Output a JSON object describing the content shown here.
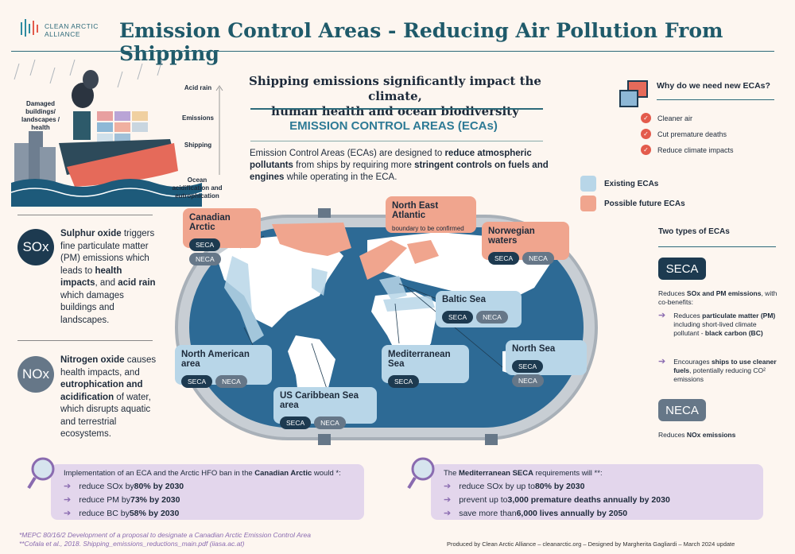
{
  "logo": {
    "line1": "CLEAN ARCTIC",
    "line2": "ALLIANCE"
  },
  "title": "Emission Control Areas - Reducing Air Pollution From Shipping",
  "subtitle_line1": "Shipping emissions significantly impact the climate,",
  "subtitle_line2": "human health and ocean biodiversity",
  "ecas_heading": "EMISSION CONTROL AREAS (ECAs)",
  "intro": {
    "p1": "Emission Control Areas (ECAs) are designed to ",
    "b1": "reduce atmospheric pollutants",
    "p2": " from ships by requiring more ",
    "b2": "stringent controls on fuels and engines",
    "p3": " while operating in the ECA."
  },
  "illustration": {
    "damaged": "Damaged buildings/ landscapes / health",
    "acid_rain": "Acid rain",
    "emissions": "Emissions",
    "shipping": "Shipping",
    "ocean": "Ocean acidification and eutrophication"
  },
  "why": {
    "title": "Why do we need new ECAs?",
    "items": [
      "Cleaner air",
      "Cut premature deaths",
      "Reduce climate impacts"
    ]
  },
  "legend": {
    "existing": "Existing ECAs",
    "future": "Possible future ECAs"
  },
  "types": {
    "title": "Two types of ECAs",
    "seca": "SECA",
    "seca_desc_a": "Reduces ",
    "seca_desc_b": "SOx and PM emissions",
    "seca_desc_c": ", with co-benefits:",
    "seca_b1_a": "Reduces ",
    "seca_b1_b": "particulate matter (PM)",
    "seca_b1_c": " including short-lived climate pollutant - ",
    "seca_b1_d": "black carbon (BC)",
    "seca_b2_a": "Encourages ",
    "seca_b2_b": "ships to use cleaner fuels",
    "seca_b2_c": ", potentially reducing CO² emissions",
    "neca": "NECA",
    "neca_desc_a": "Reduces ",
    "neca_desc_b": "NOx emissions"
  },
  "sox": {
    "icon": "SOx",
    "t1": "Sulphur oxide",
    "t2": " triggers fine particulate matter (PM) emissions which leads to ",
    "t3": "health impacts",
    "t4": ", and ",
    "t5": "acid rain",
    "t6": " which damages buildings and landscapes."
  },
  "nox": {
    "icon": "NOx",
    "t1": "Nitrogen oxide",
    "t2": " causes health impacts, and ",
    "t3": "eutrophication and acidification",
    "t4": " of water, which disrupts aquatic and terrestrial ecosystems."
  },
  "regions": {
    "canadian": {
      "name": "Canadian Arctic",
      "seca": "SECA",
      "neca": "NECA"
    },
    "nea": {
      "name": "North East Atlantic",
      "note": "boundary to be confirmed"
    },
    "norwegian": {
      "name": "Norwegian waters",
      "seca": "SECA",
      "neca": "NECA"
    },
    "baltic": {
      "name": "Baltic Sea",
      "seca": "SECA",
      "neca": "NECA"
    },
    "north_am": {
      "name": "North American area",
      "seca": "SECA",
      "neca": "NECA"
    },
    "med": {
      "name": "Mediterranean Sea",
      "seca": "SECA"
    },
    "north_sea": {
      "name": "North Sea",
      "seca": "SECA",
      "neca": "NECA"
    },
    "caribbean": {
      "name": "US Caribbean Sea area",
      "seca": "SECA",
      "neca": "NECA"
    }
  },
  "bottom_left": {
    "intro_a": "Implementation of an ECA and the Arctic HFO ban in the ",
    "intro_b": "Canadian Arctic",
    "intro_c": " would *:",
    "r1a": "reduce SOx by ",
    "r1b": "80% by 2030",
    "r2a": "reduce PM by ",
    "r2b": "73% by 2030",
    "r3a": "reduce BC by ",
    "r3b": "58% by 2030"
  },
  "bottom_right": {
    "intro_a": "The ",
    "intro_b": "Mediterranean SECA",
    "intro_c": " requirements will **:",
    "r1a": "reduce SOx by up to ",
    "r1b": "80% by 2030",
    "r2a": "prevent up to ",
    "r2b": "3,000 premature deaths annually by 2030",
    "r3a": "save more than ",
    "r3b": "6,000 lives annually by 2050"
  },
  "footnotes": {
    "f1": "*MEPC 80/16/2 Development of a proposal to designate a Canadian Arctic Emission Control Area",
    "f2": "**Cofala et al., 2018. Shipping_emissions_reductions_main.pdf (iiasa.ac.at)"
  },
  "credit": "Produced by Clean Arctic Alliance – cleanarctic.org – Designed by Margherita Gagliardi – March 2024 update",
  "colors": {
    "teal": "#2d6a7a",
    "blue_eca": "#b8d6e8",
    "pink_eca": "#f0a58e",
    "ocean": "#2d6a95",
    "navy": "#1d3a50"
  }
}
